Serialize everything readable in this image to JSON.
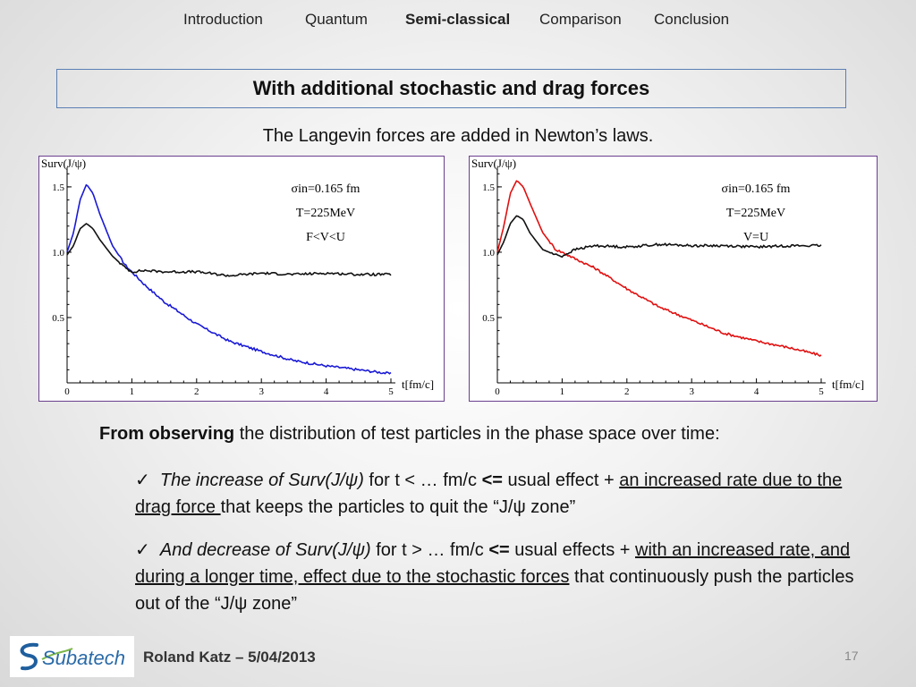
{
  "nav": {
    "items": [
      "Introduction",
      "Quantum",
      "Semi-classical",
      "Comparison",
      "Conclusion"
    ],
    "active": "Semi-classical"
  },
  "slide": {
    "title": "With additional stochastic and drag forces",
    "subtitle": "The Langevin forces are added in Newton’s laws."
  },
  "chart_data": [
    {
      "type": "line",
      "ylabel": "Surv(J/ψ)",
      "xlabel": "t[fm/c]",
      "x_ticks": [
        0,
        1,
        2,
        3,
        4,
        5
      ],
      "y_ticks": [
        0.5,
        1.0,
        1.5
      ],
      "xlim": [
        0,
        5
      ],
      "ylim": [
        0,
        1.65
      ],
      "annotation": [
        "σin=0.165 fm",
        "T=225MeV",
        "F<V<U"
      ],
      "grid": false,
      "x": [
        0,
        0.1,
        0.2,
        0.3,
        0.4,
        0.5,
        0.7,
        0.9,
        1.0,
        1.2,
        1.5,
        2.0,
        2.5,
        3.0,
        3.5,
        4.0,
        4.5,
        5.0
      ],
      "series": [
        {
          "color": "#1a1ad6",
          "values": [
            1.0,
            1.15,
            1.4,
            1.52,
            1.45,
            1.3,
            1.05,
            0.9,
            0.85,
            0.75,
            0.62,
            0.45,
            0.32,
            0.24,
            0.17,
            0.13,
            0.1,
            0.07
          ]
        },
        {
          "color": "#111111",
          "values": [
            0.98,
            1.05,
            1.18,
            1.22,
            1.18,
            1.1,
            0.97,
            0.88,
            0.85,
            0.86,
            0.85,
            0.85,
            0.82,
            0.84,
            0.83,
            0.84,
            0.83,
            0.83
          ]
        }
      ]
    },
    {
      "type": "line",
      "ylabel": "Surv(J/ψ)",
      "xlabel": "t[fm/c]",
      "x_ticks": [
        0,
        1,
        2,
        3,
        4,
        5
      ],
      "y_ticks": [
        0.5,
        1.0,
        1.5
      ],
      "xlim": [
        0,
        5
      ],
      "ylim": [
        0,
        1.65
      ],
      "annotation": [
        "σin=0.165 fm",
        "T=225MeV",
        "V=U"
      ],
      "grid": false,
      "x": [
        0,
        0.1,
        0.2,
        0.3,
        0.4,
        0.5,
        0.7,
        0.9,
        1.0,
        1.2,
        1.5,
        2.0,
        2.5,
        3.0,
        3.5,
        4.0,
        4.5,
        5.0
      ],
      "series": [
        {
          "color": "#e01010",
          "values": [
            1.0,
            1.2,
            1.45,
            1.55,
            1.5,
            1.38,
            1.15,
            1.02,
            1.0,
            0.95,
            0.88,
            0.72,
            0.58,
            0.48,
            0.38,
            0.32,
            0.27,
            0.21
          ]
        },
        {
          "color": "#111111",
          "values": [
            0.98,
            1.08,
            1.22,
            1.28,
            1.25,
            1.15,
            1.02,
            0.98,
            0.97,
            1.02,
            1.05,
            1.04,
            1.06,
            1.05,
            1.05,
            1.04,
            1.05,
            1.05
          ]
        }
      ]
    }
  ],
  "body": {
    "intro_bold": "From observing",
    "intro_rest": " the distribution of test particles in the phase space over time:",
    "bullet1": {
      "check": "✓",
      "italic": "The increase of Surv(J/ψ)",
      "plain1": " for t < … fm/c ",
      "arrow": "<=",
      "plain2": " usual effect + ",
      "underlined": "an increased rate due to the drag force ",
      "plain3": "that keeps the particles to quit the “J/ψ zone”"
    },
    "bullet2": {
      "check": "✓",
      "italic": "And decrease of Surv(J/ψ)",
      "plain1": " for t > … fm/c ",
      "arrow": "<=",
      "plain2": " usual effects + ",
      "underlined": "with an increased rate, and during a longer time, effect due to the stochastic forces",
      "plain3": " that continuously push the particles out of the “J/ψ zone”"
    }
  },
  "footer": {
    "logo_text": "Subatech",
    "author": "Roland Katz – 5/04/2013",
    "page": "17"
  },
  "colors": {
    "title_border": "#5b7fb4",
    "chart_border": "#6a3f8e",
    "blue": "#1a1ad6",
    "red": "#e01010"
  }
}
